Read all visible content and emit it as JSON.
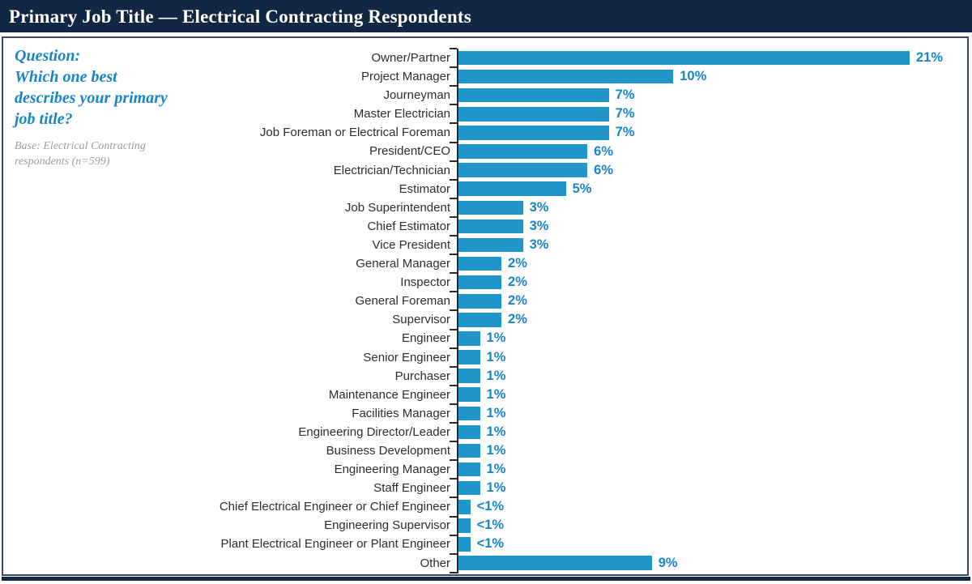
{
  "header": {
    "title": "Primary Job Title — Electrical Contracting Respondents"
  },
  "question": {
    "label": "Question:",
    "text": "Which one best describes your primary job title?",
    "base": "Base: Electrical Contracting respondents (n=599)"
  },
  "colors": {
    "navy": "#122742",
    "bar_blue": "#2196CA",
    "value_text_blue": "#1685C6",
    "category_label": "#2D2D2D",
    "axis": "#2B2B2B",
    "base_gray": "#9C9C9C",
    "panel_border": "#3A4A66"
  },
  "chart_data": {
    "type": "bar",
    "orientation": "horizontal",
    "title": "Primary Job Title — Electrical Contracting Respondents",
    "xlabel": "",
    "ylabel": "",
    "xmax": 21,
    "grid": false,
    "legend": false,
    "categories": [
      "Owner/Partner",
      "Project Manager",
      "Journeyman",
      "Master Electrician",
      "Job Foreman or Electrical Foreman",
      "President/CEO",
      "Electrician/Technician",
      "Estimator",
      "Job Superintendent",
      "Chief Estimator",
      "Vice President",
      "General Manager",
      "Inspector",
      "General Foreman",
      "Supervisor",
      "Engineer",
      "Senior Engineer",
      "Purchaser",
      "Maintenance Engineer",
      "Facilities Manager",
      "Engineering Director/Leader",
      "Business Development",
      "Engineering Manager",
      "Staff Engineer",
      "Chief Electrical Engineer or Chief Engineer",
      "Engineering Supervisor",
      "Plant Electrical Engineer or Plant Engineer",
      "Other"
    ],
    "values": [
      21,
      10,
      7,
      7,
      7,
      6,
      6,
      5,
      3,
      3,
      3,
      2,
      2,
      2,
      2,
      1,
      1,
      1,
      1,
      1,
      1,
      1,
      1,
      1,
      0.55,
      0.55,
      0.55,
      9
    ],
    "value_labels": [
      "21%",
      "10%",
      "7%",
      "7%",
      "7%",
      "6%",
      "6%",
      "5%",
      "3%",
      "3%",
      "3%",
      "2%",
      "2%",
      "2%",
      "2%",
      "1%",
      "1%",
      "1%",
      "1%",
      "1%",
      "1%",
      "1%",
      "1%",
      "1%",
      "<1%",
      "<1%",
      "<1%",
      "9%"
    ]
  }
}
